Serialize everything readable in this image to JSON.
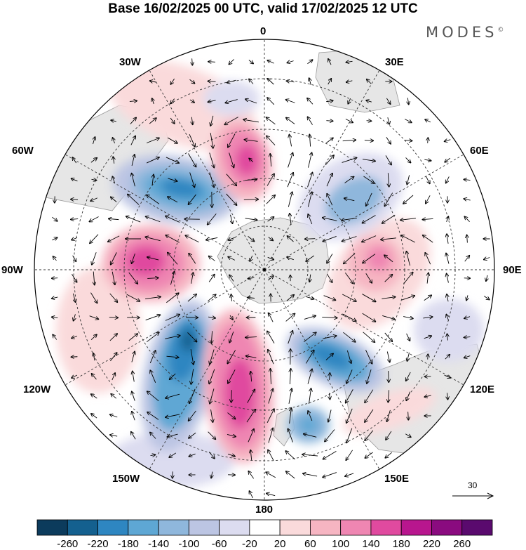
{
  "title": "Base 16/02/2025 00 UTC, valid 17/02/2025 12 UTC",
  "brand": "MODES",
  "brand_mark": "©",
  "map": {
    "projection": "south-polar-stereographic",
    "center": "South Pole",
    "longitude_labels": {
      "0": "0",
      "30E": "30E",
      "60E": "60E",
      "90E": "90E",
      "120E": "120E",
      "150E": "150E",
      "180": "180",
      "150W": "150W",
      "120W": "120W",
      "90W": "90W",
      "60W": "60W",
      "30W": "30W"
    },
    "reference_vector": "30",
    "colors": {
      "land": "#e6e6e6",
      "coast": "#999999",
      "grid": "#333333"
    }
  },
  "colorbar": {
    "ticks": [
      "-260",
      "-220",
      "-180",
      "-140",
      "-100",
      "-60",
      "-20",
      "20",
      "60",
      "100",
      "140",
      "180",
      "220",
      "260"
    ],
    "colors": [
      "#0c3b5c",
      "#14608f",
      "#2e86c1",
      "#5ea7d4",
      "#8fb7dc",
      "#bcc5e3",
      "#dcdcf0",
      "#ffffff",
      "#fadadb",
      "#f6b5c2",
      "#ef86b2",
      "#e04a9f",
      "#b8168e",
      "#8a0b7f",
      "#5a0a6e"
    ]
  }
}
